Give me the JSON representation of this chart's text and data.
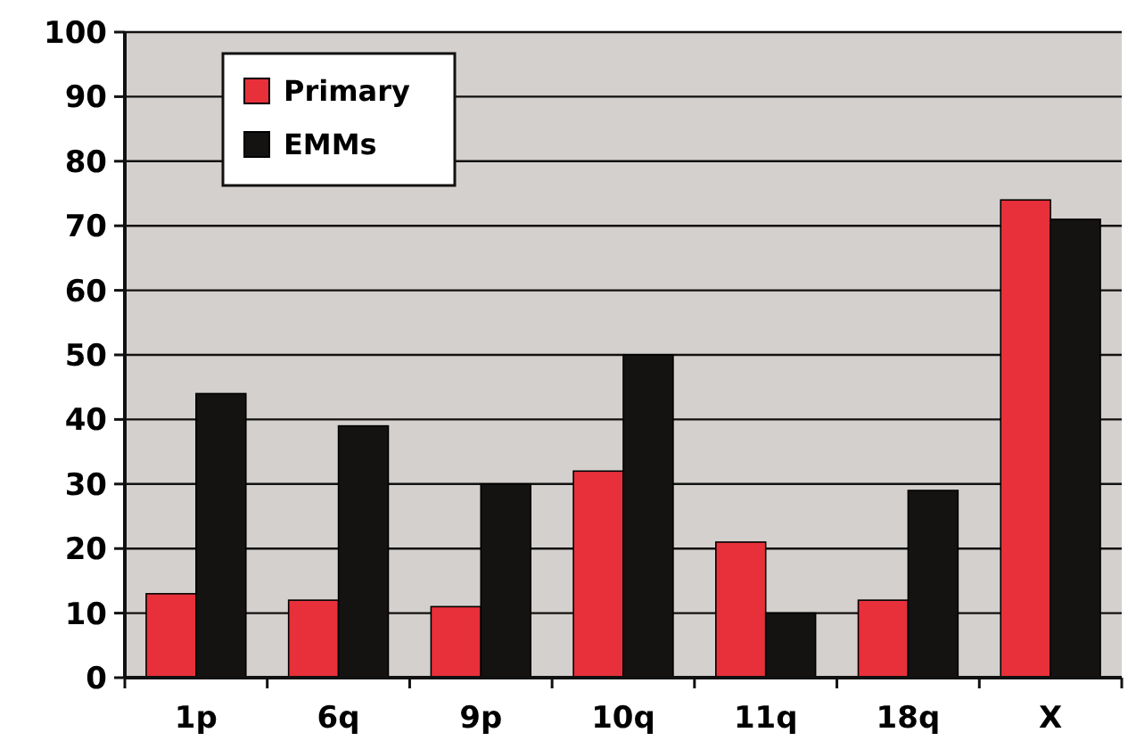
{
  "chart_data": {
    "type": "bar",
    "categories": [
      "1p",
      "6q",
      "9p",
      "10q",
      "11q",
      "18q",
      "X"
    ],
    "series": [
      {
        "name": "Primary",
        "color": "#e8303a",
        "values": [
          13,
          12,
          11,
          32,
          21,
          12,
          74
        ]
      },
      {
        "name": "EMMs",
        "color": "#151212",
        "values": [
          44,
          39,
          30,
          50,
          10,
          29,
          71
        ]
      }
    ],
    "ylim": [
      0,
      100
    ],
    "yticks": [
      0,
      10,
      20,
      30,
      40,
      50,
      60,
      70,
      80,
      90,
      100
    ],
    "grid": "y",
    "legend": "top left"
  }
}
